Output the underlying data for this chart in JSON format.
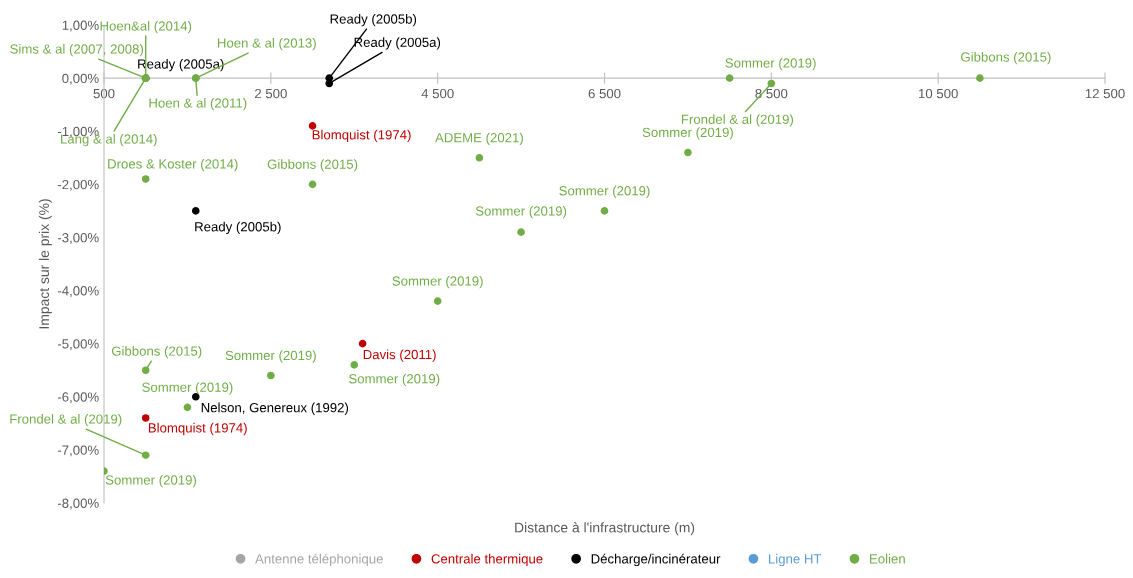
{
  "chart_data": {
    "type": "scatter",
    "xlabel": "Distance à l'infrastructure (m)",
    "ylabel": "Impact sur le prix (%)",
    "xlim": [
      500,
      12500
    ],
    "ylim": [
      -8,
      1
    ],
    "xticks": [
      {
        "value": 500,
        "label": "500"
      },
      {
        "value": 2500,
        "label": "2 500"
      },
      {
        "value": 4500,
        "label": "4 500"
      },
      {
        "value": 6500,
        "label": "6 500"
      },
      {
        "value": 8500,
        "label": "8 500"
      },
      {
        "value": 10500,
        "label": "10 500"
      },
      {
        "value": 12500,
        "label": "12 500"
      }
    ],
    "yticks": [
      {
        "value": 1,
        "label": "1,00%"
      },
      {
        "value": 0,
        "label": "0,00%"
      },
      {
        "value": -1,
        "label": "-1,00%"
      },
      {
        "value": -2,
        "label": "-2,00%"
      },
      {
        "value": -3,
        "label": "-3,00%"
      },
      {
        "value": -4,
        "label": "-4,00%"
      },
      {
        "value": -5,
        "label": "-5,00%"
      },
      {
        "value": -6,
        "label": "-6,00%"
      },
      {
        "value": -7,
        "label": "-7,00%"
      },
      {
        "value": -8,
        "label": "-8,00%"
      }
    ],
    "grid": false,
    "legend": "bottom",
    "marker": "circle",
    "series": [
      {
        "name": "Antenne téléphonique",
        "color": "#a5a5a5"
      },
      {
        "name": "Centrale thermique",
        "color": "#c00000",
        "x": [
          3000,
          3600,
          1000
        ],
        "values": [
          -0.9,
          -5.0,
          -6.4
        ]
      },
      {
        "name": "Décharge/incinérateur",
        "color": "#000000",
        "x": [
          1000,
          3200,
          3200,
          1600,
          1600
        ],
        "values": [
          0,
          0,
          -0.1,
          -2.5,
          -6.0
        ]
      },
      {
        "name": "Ligne HT",
        "color": "#5b9bd5"
      },
      {
        "name": "Eolien",
        "color": "#70ad47",
        "x": [
          1000,
          1000,
          1000,
          1600,
          1600,
          8000,
          8500,
          11000,
          5000,
          7500,
          1000,
          3000,
          6500,
          5500,
          4500,
          3500,
          2500,
          1000,
          1500,
          1000,
          500
        ],
        "values": [
          0,
          0,
          0,
          0,
          0,
          0,
          -0.1,
          0,
          -1.5,
          -1.4,
          -1.9,
          -2.0,
          -2.5,
          -2.9,
          -4.2,
          -5.4,
          -5.6,
          -5.5,
          -6.2,
          -7.1,
          -7.4
        ]
      }
    ],
    "annotations": [
      {
        "text": "Blomquist (1974)",
        "x": 3000,
        "y": -0.9
      },
      {
        "text": "Davis (2011)",
        "x": 3600,
        "y": -5.0
      },
      {
        "text": "Blomquist (1974)",
        "x": 1000,
        "y": -6.4
      },
      {
        "text": "Ready (2005a)",
        "x": 1000,
        "y": 0
      },
      {
        "text": "Ready (2005b)",
        "x": 3200,
        "y": 0
      },
      {
        "text": "Ready (2005a)",
        "x": 3200,
        "y": -0.1
      },
      {
        "text": "Ready (2005b)",
        "x": 1600,
        "y": -2.5
      },
      {
        "text": "Nelson, Genereux (1992)",
        "x": 1600,
        "y": -6.0
      },
      {
        "text": "Hoen&al (2014)",
        "x": 1000,
        "y": 0
      },
      {
        "text": "Sims & al (2007, 2008)",
        "x": 1000,
        "y": 0
      },
      {
        "text": "Lang & al (2014)",
        "x": 1000,
        "y": 0
      },
      {
        "text": "Hoen & al (2013)",
        "x": 1600,
        "y": 0
      },
      {
        "text": "Hoen & al (2011)",
        "x": 1600,
        "y": 0
      },
      {
        "text": "Sommer (2019)",
        "x": 8000,
        "y": 0
      },
      {
        "text": "Frondel & al (2019)",
        "x": 8500,
        "y": -0.1
      },
      {
        "text": "Gibbons (2015)",
        "x": 11000,
        "y": 0
      },
      {
        "text": "ADEME (2021)",
        "x": 5000,
        "y": -1.5
      },
      {
        "text": "Sommer (2019)",
        "x": 7500,
        "y": -1.4
      },
      {
        "text": "Droes & Koster (2014)",
        "x": 1000,
        "y": -1.9
      },
      {
        "text": "Gibbons (2015)",
        "x": 3000,
        "y": -2.0
      },
      {
        "text": "Sommer (2019)",
        "x": 6500,
        "y": -2.5
      },
      {
        "text": "Sommer (2019)",
        "x": 5500,
        "y": -2.9
      },
      {
        "text": "Sommer (2019)",
        "x": 4500,
        "y": -4.2
      },
      {
        "text": "Sommer (2019)",
        "x": 3500,
        "y": -5.4
      },
      {
        "text": "Sommer (2019)",
        "x": 2500,
        "y": -5.6
      },
      {
        "text": "Gibbons (2015)",
        "x": 1000,
        "y": -5.5
      },
      {
        "text": "Sommer (2019)",
        "x": 1500,
        "y": -6.2
      },
      {
        "text": "Frondel & al (2019)",
        "x": 1000,
        "y": -7.1
      },
      {
        "text": "Sommer (2019)",
        "x": 500,
        "y": -7.4
      }
    ]
  }
}
